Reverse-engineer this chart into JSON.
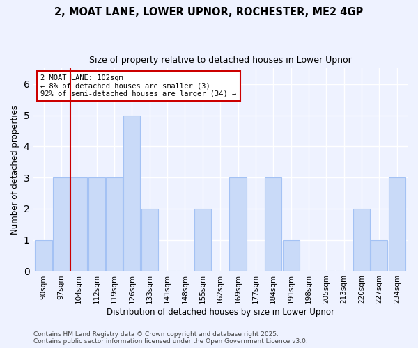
{
  "title1": "2, MOAT LANE, LOWER UPNOR, ROCHESTER, ME2 4GP",
  "title2": "Size of property relative to detached houses in Lower Upnor",
  "xlabel": "Distribution of detached houses by size in Lower Upnor",
  "ylabel": "Number of detached properties",
  "bins": [
    "90sqm",
    "97sqm",
    "104sqm",
    "112sqm",
    "119sqm",
    "126sqm",
    "133sqm",
    "141sqm",
    "148sqm",
    "155sqm",
    "162sqm",
    "169sqm",
    "177sqm",
    "184sqm",
    "191sqm",
    "198sqm",
    "205sqm",
    "213sqm",
    "220sqm",
    "227sqm",
    "234sqm"
  ],
  "values": [
    1,
    3,
    3,
    3,
    3,
    5,
    2,
    0,
    0,
    2,
    0,
    3,
    0,
    3,
    1,
    0,
    0,
    0,
    2,
    1,
    3
  ],
  "bar_color": "#c9daf8",
  "bar_edge_color": "#a4c2f4",
  "property_line_x": 1.5,
  "annotation_line1": "2 MOAT LANE: 102sqm",
  "annotation_line2": "← 8% of detached houses are smaller (3)",
  "annotation_line3": "92% of semi-detached houses are larger (34) →",
  "footer1": "Contains HM Land Registry data © Crown copyright and database right 2025.",
  "footer2": "Contains public sector information licensed under the Open Government Licence v3.0.",
  "ylim": [
    0,
    6.5
  ],
  "yticks": [
    0,
    1,
    2,
    3,
    4,
    5,
    6
  ],
  "background_color": "#eef2ff",
  "grid_color": "#ffffff"
}
